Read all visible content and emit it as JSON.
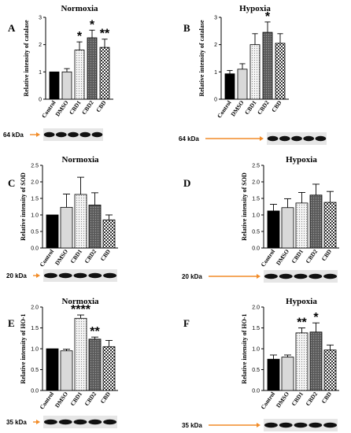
{
  "chart_data": [
    {
      "panel": "A",
      "title": "Normoxia",
      "type": "bar",
      "ylabel": "Relative intensity of catalase",
      "categories": [
        "Control",
        "DMSO",
        "CBD1",
        "CBD2",
        "CBD"
      ],
      "values": [
        1.0,
        1.0,
        1.8,
        2.25,
        1.9
      ],
      "errors": [
        0,
        0.12,
        0.3,
        0.28,
        0.3
      ],
      "significance": [
        "",
        "",
        "*",
        "*",
        "**"
      ],
      "ylim": [
        0,
        3
      ],
      "yticks": [
        "0",
        "1",
        "2",
        "3"
      ],
      "blot_label": "64 kDa"
    },
    {
      "panel": "B",
      "title": "Hypoxia",
      "type": "bar",
      "ylabel": "Relative intensity of catalase",
      "categories": [
        "Control",
        "DMSO",
        "CBD1",
        "CBD2",
        "CBD"
      ],
      "values": [
        0.93,
        1.1,
        2.0,
        2.45,
        2.05
      ],
      "errors": [
        0.12,
        0.2,
        0.4,
        0.38,
        0.35
      ],
      "significance": [
        "",
        "",
        "",
        "*",
        ""
      ],
      "ylim": [
        0,
        3
      ],
      "yticks": [
        "0",
        "1",
        "2",
        "3"
      ],
      "blot_label": "64 kDa"
    },
    {
      "panel": "C",
      "title": "Normoxia",
      "type": "bar",
      "ylabel": "Relative intensity of SOD",
      "categories": [
        "Control",
        "DMSO",
        "CBD1",
        "CBD2",
        "CBD"
      ],
      "values": [
        1.0,
        1.23,
        1.62,
        1.3,
        0.85
      ],
      "errors": [
        0,
        0.4,
        0.52,
        0.37,
        0.15
      ],
      "significance": [
        "",
        "",
        "",
        "",
        ""
      ],
      "ylim": [
        0,
        2.5
      ],
      "yticks": [
        "0.0",
        "0.5",
        "1.0",
        "1.5",
        "2.0",
        "2.5"
      ],
      "blot_label": "20 kDa"
    },
    {
      "panel": "D",
      "title": "Hypoxia",
      "type": "bar",
      "ylabel": "Relative intensity of SOD",
      "categories": [
        "Control",
        "DMSO",
        "CBD1",
        "CBD2",
        "CBD"
      ],
      "values": [
        1.12,
        1.22,
        1.36,
        1.6,
        1.38
      ],
      "errors": [
        0.2,
        0.27,
        0.32,
        0.33,
        0.33
      ],
      "significance": [
        "",
        "",
        "",
        "",
        ""
      ],
      "ylim": [
        0,
        2.5
      ],
      "yticks": [
        "0.0",
        "0.5",
        "1.0",
        "1.5",
        "2.0",
        "2.5"
      ],
      "blot_label": "20 kDa"
    },
    {
      "panel": "E",
      "title": "Normoxia",
      "type": "bar",
      "ylabel": "Relative intensity of HO-1",
      "categories": [
        "Control",
        "DMSO",
        "CBD1",
        "CBD2",
        "CBD"
      ],
      "values": [
        1.0,
        0.95,
        1.73,
        1.23,
        1.05
      ],
      "errors": [
        0,
        0.04,
        0.08,
        0.05,
        0.15
      ],
      "significance": [
        "",
        "",
        "****",
        "**",
        ""
      ],
      "ylim": [
        0,
        2.0
      ],
      "yticks": [
        "0.0",
        "0.5",
        "1.0",
        "1.5",
        "2.0"
      ],
      "blot_label": "35 kDa"
    },
    {
      "panel": "F",
      "title": "Hypoxia",
      "type": "bar",
      "ylabel": "Relative intensity of HO-1",
      "categories": [
        "Control",
        "DMSO",
        "CBD1",
        "CBD2",
        "CBD"
      ],
      "values": [
        0.75,
        0.8,
        1.38,
        1.4,
        0.97
      ],
      "errors": [
        0.1,
        0.05,
        0.12,
        0.22,
        0.12
      ],
      "significance": [
        "",
        "",
        "**",
        "*",
        ""
      ],
      "ylim": [
        0,
        2.0
      ],
      "yticks": [
        "0.0",
        "0.5",
        "1.0",
        "1.5",
        "2.0"
      ],
      "blot_label": "35 kDa"
    }
  ],
  "colors": {
    "arrow": "#f28c28",
    "bar_edge": "#000000",
    "control": "#000000",
    "dmso": "#d9d9d9",
    "cbd1": "#f2f2f2",
    "cbd2": "#6b6b6b",
    "cbd": "#ffffff"
  }
}
